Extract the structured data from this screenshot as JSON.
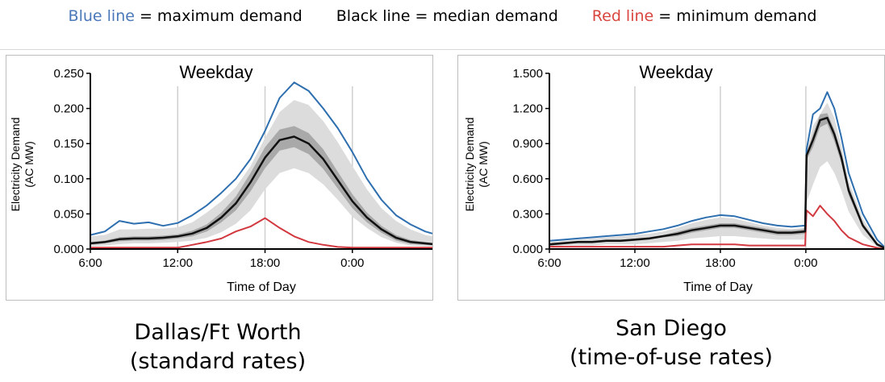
{
  "legend": {
    "blue_label": "Blue line",
    "blue_text": " = maximum demand",
    "black_text": "Black line = median demand",
    "red_label": "Red line",
    "red_text": " = minimum demand"
  },
  "colors": {
    "max": "#2e6fb0",
    "median": "#111111",
    "min": "#d2383f",
    "band_outer": "#dcdcdc",
    "band_inner": "#a9a9a9"
  },
  "captions": [
    {
      "line1": "Dallas/Ft Worth",
      "line2": "(standard rates)"
    },
    {
      "line1": "San Diego",
      "line2": "(time-of-use rates)"
    }
  ],
  "chart_data": [
    {
      "type": "area",
      "title": "Weekday",
      "xlabel": "Time of Day",
      "ylabel": "Electricity Demand (AC MW)",
      "ylabel_lines": [
        "Electricity Demand",
        "(AC MW)"
      ],
      "x_ticks": [
        "6:00",
        "12:00",
        "18:00",
        "0:00"
      ],
      "y_ticks": [
        "0.000",
        "0.050",
        "0.100",
        "0.150",
        "0.200",
        "0.250"
      ],
      "ylim": [
        0,
        0.25
      ],
      "x_unit": "hours since 6:00",
      "xlim": [
        0,
        23.5
      ],
      "vgrid_hours": [
        6,
        12,
        18
      ],
      "x": [
        0,
        1,
        2,
        3,
        4,
        5,
        6,
        7,
        8,
        9,
        10,
        11,
        12,
        13,
        14,
        15,
        16,
        17,
        18,
        19,
        20,
        21,
        22,
        23,
        23.5
      ],
      "series": [
        {
          "name": "maximum",
          "values": [
            0.02,
            0.025,
            0.04,
            0.036,
            0.038,
            0.033,
            0.037,
            0.048,
            0.062,
            0.08,
            0.1,
            0.128,
            0.168,
            0.215,
            0.237,
            0.225,
            0.2,
            0.172,
            0.138,
            0.1,
            0.07,
            0.048,
            0.035,
            0.025,
            0.022
          ]
        },
        {
          "name": "median",
          "values": [
            0.008,
            0.01,
            0.014,
            0.015,
            0.015,
            0.016,
            0.018,
            0.022,
            0.03,
            0.045,
            0.065,
            0.095,
            0.13,
            0.155,
            0.16,
            0.15,
            0.128,
            0.098,
            0.068,
            0.045,
            0.028,
            0.016,
            0.01,
            0.008,
            0.007
          ]
        },
        {
          "name": "minimum",
          "values": [
            0.002,
            0.002,
            0.002,
            0.002,
            0.002,
            0.002,
            0.002,
            0.006,
            0.01,
            0.015,
            0.025,
            0.032,
            0.044,
            0.03,
            0.018,
            0.01,
            0.006,
            0.003,
            0.002,
            0.002,
            0.002,
            0.002,
            0.002,
            0.002,
            0.002
          ]
        },
        {
          "name": "band_outer_upper",
          "values": [
            0.018,
            0.02,
            0.028,
            0.028,
            0.029,
            0.029,
            0.031,
            0.038,
            0.052,
            0.068,
            0.088,
            0.118,
            0.158,
            0.195,
            0.212,
            0.205,
            0.182,
            0.152,
            0.118,
            0.085,
            0.058,
            0.04,
            0.028,
            0.02,
            0.018
          ]
        },
        {
          "name": "band_outer_lower",
          "values": [
            0.004,
            0.005,
            0.007,
            0.008,
            0.008,
            0.009,
            0.01,
            0.012,
            0.016,
            0.024,
            0.036,
            0.055,
            0.085,
            0.108,
            0.115,
            0.108,
            0.092,
            0.07,
            0.046,
            0.03,
            0.017,
            0.009,
            0.005,
            0.004,
            0.004
          ]
        },
        {
          "name": "band_inner_upper",
          "values": [
            0.01,
            0.012,
            0.017,
            0.018,
            0.018,
            0.019,
            0.021,
            0.026,
            0.035,
            0.052,
            0.075,
            0.108,
            0.145,
            0.17,
            0.175,
            0.165,
            0.142,
            0.11,
            0.078,
            0.052,
            0.033,
            0.02,
            0.013,
            0.01,
            0.009
          ]
        },
        {
          "name": "band_inner_lower",
          "values": [
            0.006,
            0.008,
            0.011,
            0.012,
            0.012,
            0.013,
            0.015,
            0.018,
            0.025,
            0.038,
            0.055,
            0.082,
            0.115,
            0.14,
            0.145,
            0.135,
            0.114,
            0.086,
            0.058,
            0.038,
            0.023,
            0.012,
            0.007,
            0.006,
            0.005
          ]
        }
      ]
    },
    {
      "type": "area",
      "title": "Weekday",
      "xlabel": "Time of Day",
      "ylabel": "Electricity Demand (AC MW)",
      "ylabel_lines": [
        "Electricity Demand",
        "(AC MW)"
      ],
      "x_ticks": [
        "6:00",
        "12:00",
        "18:00",
        "0:00"
      ],
      "y_ticks": [
        "0.000",
        "0.300",
        "0.600",
        "0.900",
        "1.200",
        "1.500"
      ],
      "ylim": [
        0,
        1.5
      ],
      "x_unit": "hours since 6:00",
      "xlim": [
        0,
        23.5
      ],
      "vgrid_hours": [
        6,
        12,
        18
      ],
      "x": [
        0,
        1,
        2,
        3,
        4,
        5,
        6,
        7,
        8,
        9,
        10,
        11,
        12,
        13,
        14,
        15,
        16,
        17,
        17.95,
        18.05,
        18.5,
        19,
        19.5,
        20,
        20.5,
        21,
        22,
        23,
        23.5
      ],
      "series": [
        {
          "name": "maximum",
          "values": [
            0.07,
            0.08,
            0.09,
            0.1,
            0.11,
            0.12,
            0.13,
            0.15,
            0.17,
            0.2,
            0.24,
            0.27,
            0.29,
            0.28,
            0.25,
            0.22,
            0.2,
            0.19,
            0.2,
            0.85,
            1.15,
            1.2,
            1.34,
            1.2,
            0.95,
            0.65,
            0.3,
            0.08,
            0.02
          ]
        },
        {
          "name": "median",
          "values": [
            0.04,
            0.05,
            0.06,
            0.06,
            0.07,
            0.07,
            0.08,
            0.09,
            0.11,
            0.13,
            0.16,
            0.18,
            0.2,
            0.2,
            0.18,
            0.16,
            0.14,
            0.14,
            0.15,
            0.8,
            0.93,
            1.1,
            1.12,
            0.98,
            0.78,
            0.5,
            0.2,
            0.04,
            0.01
          ]
        },
        {
          "name": "minimum",
          "values": [
            0.02,
            0.02,
            0.02,
            0.02,
            0.02,
            0.02,
            0.02,
            0.02,
            0.02,
            0.03,
            0.04,
            0.04,
            0.04,
            0.04,
            0.03,
            0.03,
            0.03,
            0.03,
            0.03,
            0.33,
            0.28,
            0.37,
            0.3,
            0.24,
            0.16,
            0.1,
            0.04,
            0.01,
            0.0
          ]
        },
        {
          "name": "band_outer_upper",
          "values": [
            0.06,
            0.07,
            0.08,
            0.09,
            0.1,
            0.11,
            0.12,
            0.13,
            0.15,
            0.18,
            0.22,
            0.25,
            0.27,
            0.26,
            0.23,
            0.2,
            0.18,
            0.17,
            0.18,
            0.82,
            1.05,
            1.15,
            1.25,
            1.12,
            0.88,
            0.58,
            0.26,
            0.06,
            0.02
          ]
        },
        {
          "name": "band_outer_lower",
          "values": [
            0.02,
            0.03,
            0.03,
            0.03,
            0.04,
            0.04,
            0.04,
            0.05,
            0.06,
            0.07,
            0.09,
            0.1,
            0.11,
            0.11,
            0.1,
            0.09,
            0.08,
            0.08,
            0.08,
            0.4,
            0.55,
            0.7,
            0.75,
            0.65,
            0.5,
            0.32,
            0.12,
            0.02,
            0.0
          ]
        },
        {
          "name": "band_inner_upper",
          "values": [
            0.05,
            0.06,
            0.07,
            0.07,
            0.08,
            0.08,
            0.09,
            0.1,
            0.12,
            0.15,
            0.18,
            0.2,
            0.22,
            0.22,
            0.2,
            0.18,
            0.16,
            0.16,
            0.17,
            0.82,
            0.98,
            1.15,
            1.16,
            1.02,
            0.82,
            0.54,
            0.22,
            0.05,
            0.01
          ]
        },
        {
          "name": "band_inner_lower",
          "values": [
            0.03,
            0.04,
            0.05,
            0.05,
            0.06,
            0.06,
            0.07,
            0.08,
            0.1,
            0.11,
            0.14,
            0.16,
            0.18,
            0.18,
            0.16,
            0.14,
            0.12,
            0.12,
            0.13,
            0.76,
            0.87,
            1.04,
            1.07,
            0.92,
            0.73,
            0.46,
            0.18,
            0.03,
            0.01
          ]
        }
      ]
    }
  ]
}
